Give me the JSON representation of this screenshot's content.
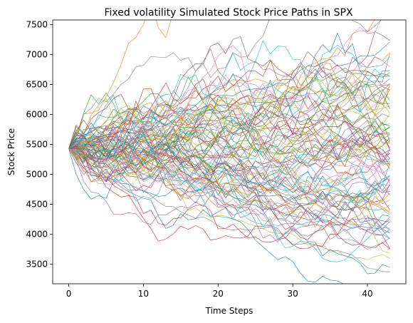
{
  "chart_data": {
    "type": "line",
    "title": "Fixed volatility Simulated Stock Price Paths in SPX",
    "xlabel": "Time Steps",
    "ylabel": "Stock Price",
    "xlim": [
      -2.15,
      45.15
    ],
    "ylim": [
      3170,
      7580
    ],
    "xticks": [
      0,
      10,
      20,
      30,
      40
    ],
    "yticks": [
      3500,
      4000,
      4500,
      5000,
      5500,
      6000,
      6500,
      7000,
      7500
    ],
    "x_start": 0,
    "x_end": 43,
    "start_value": 5430,
    "n_paths": 100,
    "line_width": 0.6,
    "grid": false,
    "legend": "none",
    "colors": [
      "#1f77b4",
      "#ff7f0e",
      "#2ca02c",
      "#d62728",
      "#9467bd",
      "#8c564b",
      "#e377c2",
      "#7f7f7f",
      "#bcbd22",
      "#17becf"
    ],
    "series": [
      {
        "final": 7210,
        "peak": 7290
      },
      {
        "final": 7040,
        "peak": 7110
      },
      {
        "final": 6700,
        "peak": 6800
      },
      {
        "final": 6650,
        "peak": 6900
      },
      {
        "final": 6600,
        "peak": 6700
      },
      {
        "final": 6500,
        "peak": 6750
      },
      {
        "final": 6350,
        "peak": 6550
      },
      {
        "final": 3370
      },
      {
        "final": 3600
      },
      {
        "final": 3930
      },
      {
        "final": 4020
      },
      {
        "final": 4350
      }
    ]
  }
}
